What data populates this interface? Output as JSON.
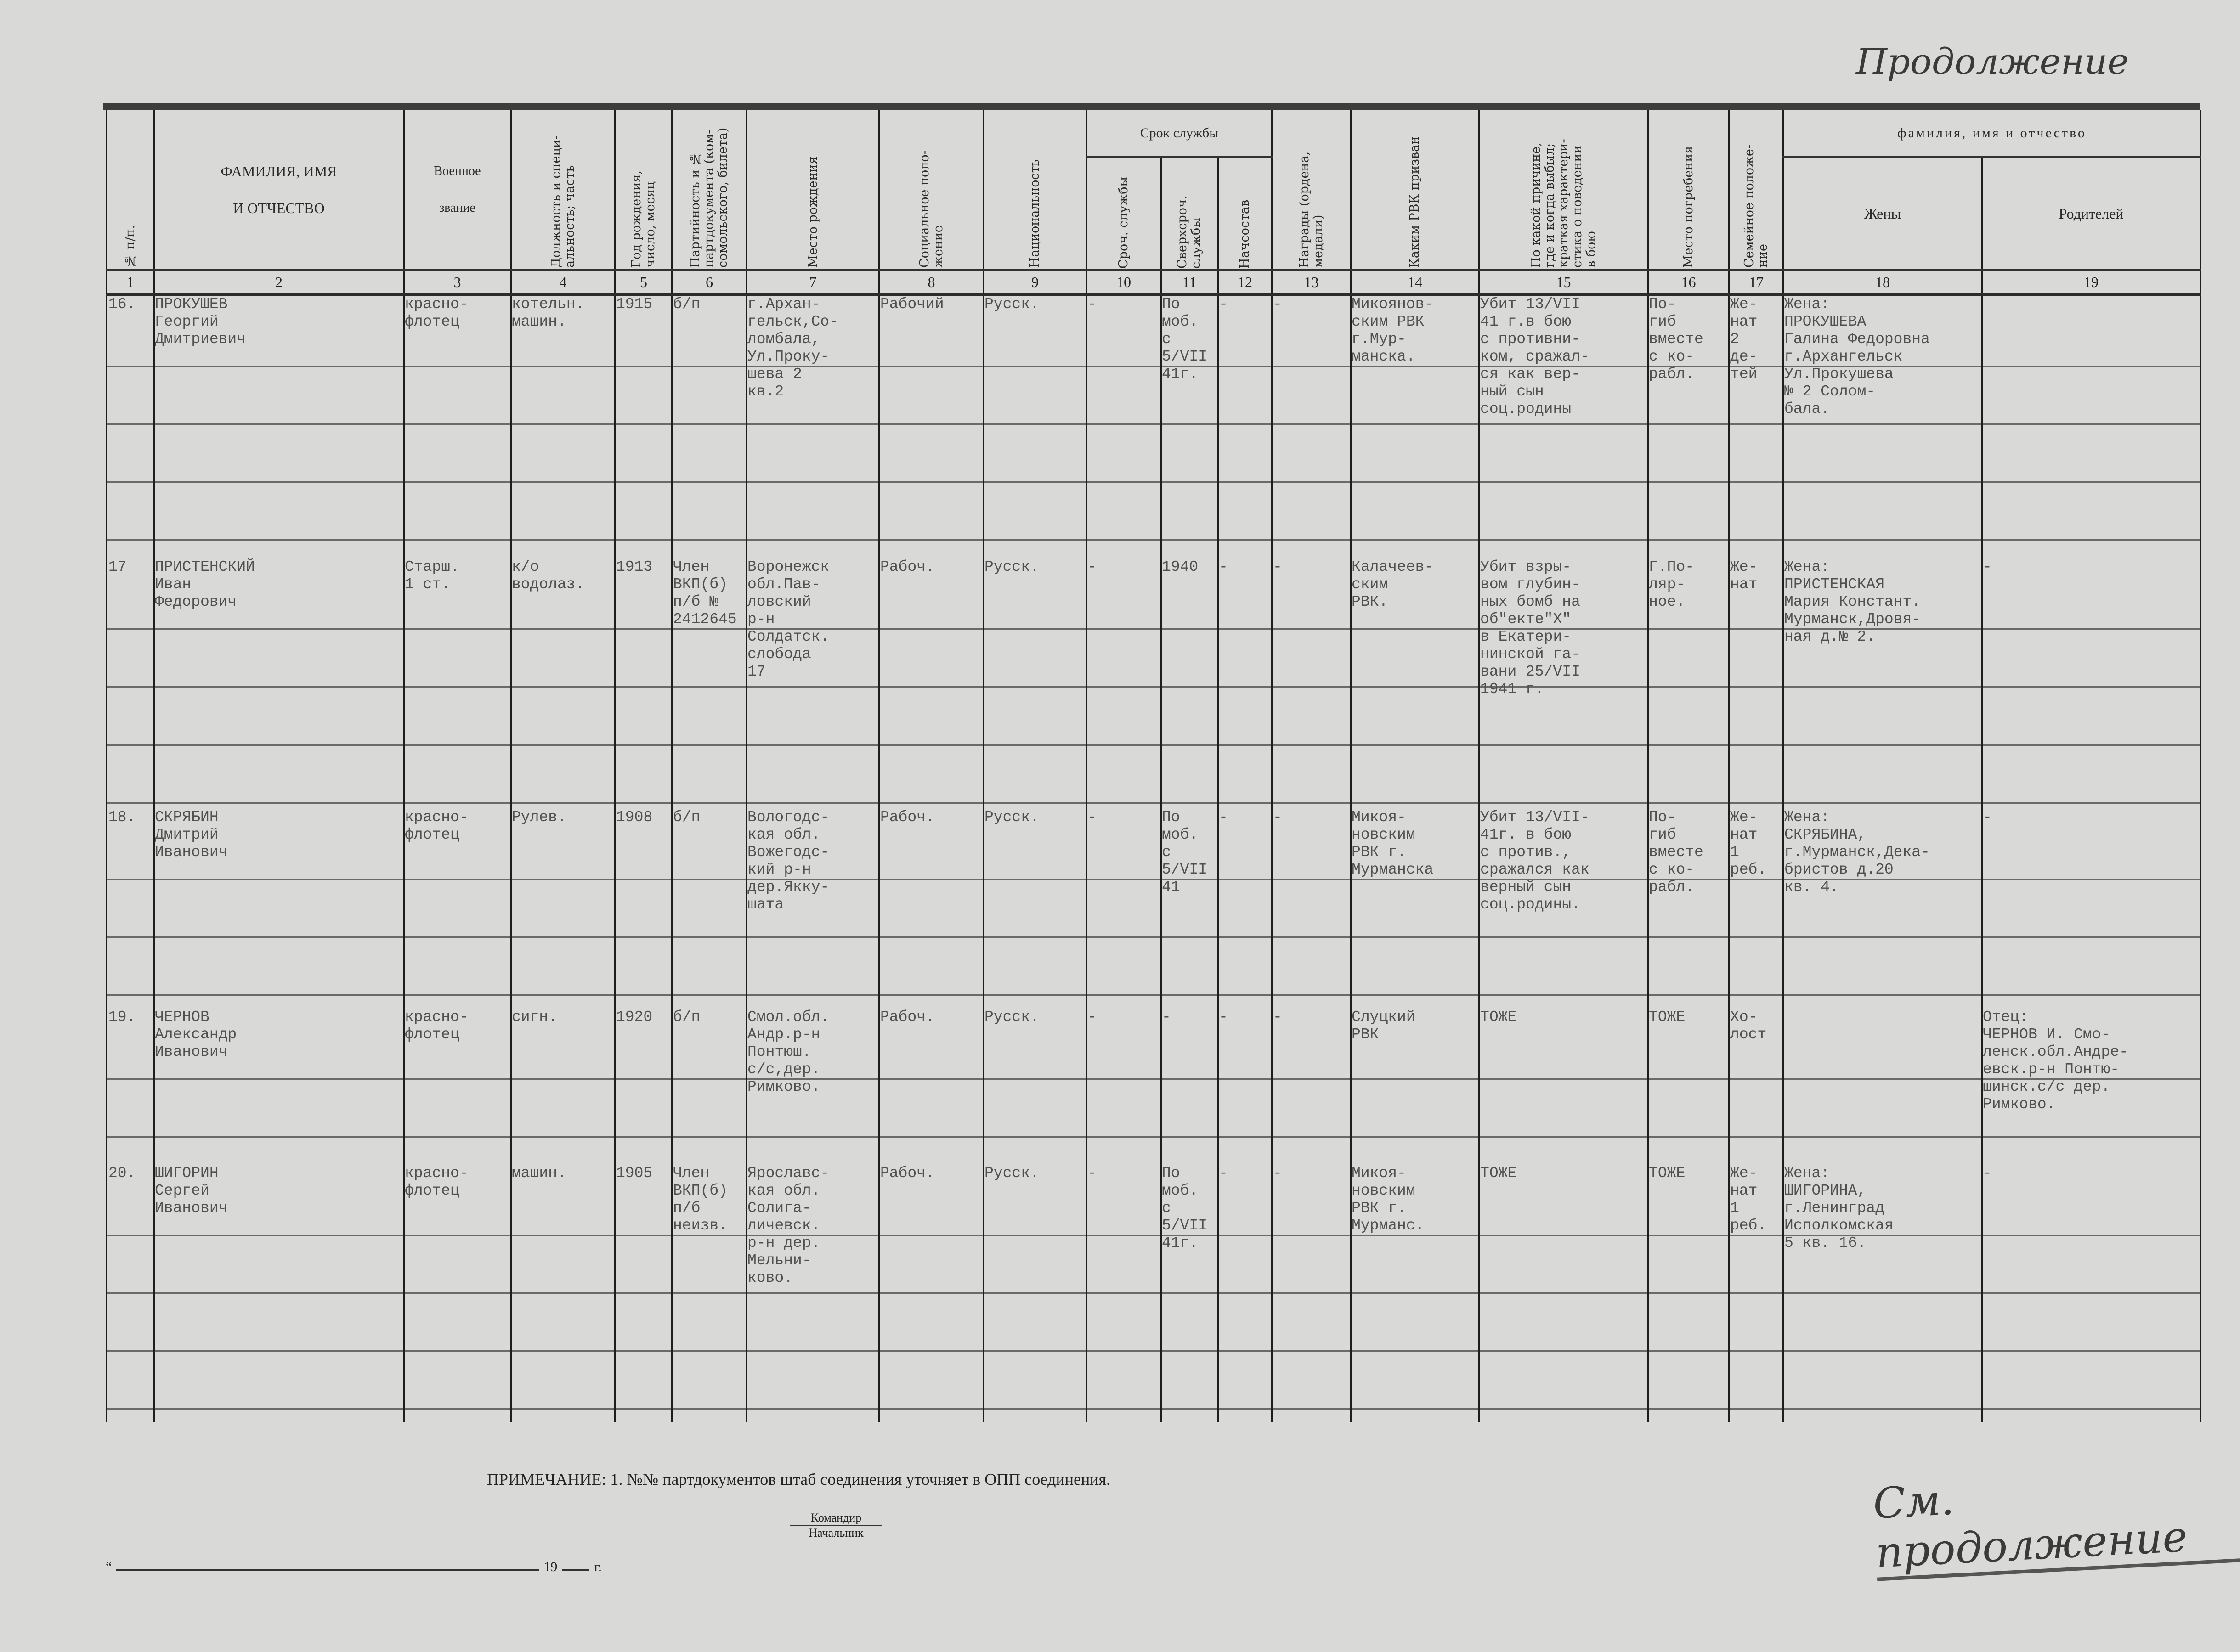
{
  "handwritten": {
    "top": "Продолжение",
    "bottom": "См. продолжение"
  },
  "header": {
    "columns": [
      {
        "n": "1",
        "label": "№ п/п."
      },
      {
        "n": "2",
        "label": "ФАМИЛИЯ, ИМЯ\nИ ОТЧЕСТВО"
      },
      {
        "n": "3",
        "label": "Военное\nзвание"
      },
      {
        "n": "4",
        "label": "Должность и специ-\nальность; часть"
      },
      {
        "n": "5",
        "label": "Год рождения,\nчисло, месяц"
      },
      {
        "n": "6",
        "label": "Партийность и №\nпартдокумента (ком-\nсомольского, билета)"
      },
      {
        "n": "7",
        "label": "Место рождения"
      },
      {
        "n": "8",
        "label": "Социальное поло-\nжение"
      },
      {
        "n": "9",
        "label": "Национальность"
      },
      {
        "n": "10",
        "label": "Сроч. службы"
      },
      {
        "n": "11",
        "label": "Сверхсроч.\nслужбы"
      },
      {
        "n": "12",
        "label": "Начсостав"
      },
      {
        "n": "13",
        "label": "Награды (ордена,\nмедали)"
      },
      {
        "n": "14",
        "label": "Каким РВК призван"
      },
      {
        "n": "15",
        "label": "По какой причине,\nгде и когда выбыл;\nкраткая характери-\nстика о поведении\nв бою"
      },
      {
        "n": "16",
        "label": "Место погребения"
      },
      {
        "n": "17",
        "label": "Семейное положе-\nние"
      },
      {
        "n": "18",
        "label": "Жены"
      },
      {
        "n": "19",
        "label": "Родителей"
      }
    ],
    "group_service": "Срок службы",
    "group_names": "фамилия, имя и отчество"
  },
  "records": [
    [
      "16.",
      "ПРОКУШЕВ\nГеоргий\nДмитриевич",
      "красно-\nфлотец",
      "котельн.\nмашин.",
      "1915",
      "б/п",
      "г.Архан-\nгельск,Со-\nломбала,\nУл.Проку-\nшева 2\nкв.2",
      "Рабочий",
      "Русск.",
      "-",
      "По\nмоб.\nс\n5/VII\n41г.",
      "-",
      "-",
      "Микоянов-\nским РВК\nг.Мур-\nманска.",
      "Убит 13/VII\n41 г.в бою\nс противни-\nком, сражал-\nся как вер-\nный сын\nсоц.родины",
      "По-\nгиб\nвместе\nс ко-\nрабл.",
      "Же-\nнат\n2\nде-\nтей",
      "Жена:\nПРОКУШЕВА\nГалина Федоровна\nг.Архангельск\nУл.Прокушева\n№ 2 Солом-\nбала.",
      ""
    ],
    [
      "17",
      "ПРИСТЕНСКИЙ\nИван\nФедорович",
      "Старш.\n1 ст.",
      "к/о\nводолаз.",
      "1913",
      "Член\nВКП(б)\nп/б №\n2412645",
      "Воронежск\nобл.Пав-\nловский\nр-н\nСолдатск.\nслобода\n17",
      "Рабоч.",
      "Русск.",
      "-",
      "1940",
      "-",
      "-",
      "Калачеев-\nским\nРВК.",
      "Убит взры-\nвом глубин-\nных бомб на\nоб\"екте\"Х\"\nв Екатери-\nнинской га-\nвани 25/VII\n1941 г.",
      "Г.По-\nляр-\nное.",
      "Же-\nнат",
      "Жена:\nПРИСТЕНСКАЯ\nМария Констант.\nМурманск,Дровя-\nная д.№ 2.",
      "-"
    ],
    [
      "18.",
      "СКРЯБИН\nДмитрий\nИванович",
      "красно-\nфлотец",
      "Рулев.",
      "1908",
      "б/п",
      "Вологодс-\nкая обл.\nВожегодс-\nкий р-н\nдер.Якку-\nшата",
      "Рабоч.",
      "Русск.",
      "-",
      "По\nмоб.\nс\n5/VII\n41",
      "-",
      "-",
      "Микоя-\nновским\nРВК г.\nМурманска",
      "Убит 13/VII-\n41г. в бою\nс против.,\nсражался как\nверный сын\nсоц.родины.",
      "По-\nгиб\nвместе\nс ко-\nрабл.",
      "Же-\nнат\n1\nреб.",
      "Жена:\nСКРЯБИНА,\nг.Мурманск,Дека-\nбристов д.20\nкв. 4.",
      "-"
    ],
    [
      "19.",
      "ЧЕРНОВ\nАлександр\nИванович",
      "красно-\nфлотец",
      "сигн.",
      "1920",
      "б/п",
      "Смол.обл.\nАндр.р-н\nПонтюш.\nс/с,дер.\nРимково.",
      "Рабоч.",
      "Русск.",
      "-",
      "-",
      "-",
      "-",
      "Слуцкий\nРВК",
      "ТОЖЕ",
      "ТОЖЕ",
      "Хо-\nлост",
      "",
      "Отец:\nЧЕРНОВ И. Смо-\nленск.обл.Андре-\nевск.р-н Понтю-\nшинск.с/с дер.\nРимково."
    ],
    [
      "20.",
      "ШИГОРИН\nСергей\nИванович",
      "красно-\nфлотец",
      "машин.",
      "1905",
      "Член\nВКП(б)\nп/б\nнеизв.",
      "Ярославс-\nкая обл.\nСолига-\nличевск.\nр-н дер.\nМельни-\nково.",
      "Рабоч.",
      "Русск.",
      "-",
      "По\nмоб.\nс\n5/VII\n41г.",
      "-",
      "-",
      "Микоя-\nновским\nРВК г.\nМурманс.",
      "ТОЖЕ",
      "ТОЖЕ",
      "Же-\nнат\n1\nреб.",
      "Жена:\nШИГОРИНА,\nг.Ленинград\nИсполкомская\n5 кв. 16.",
      "-"
    ]
  ],
  "footer": {
    "note": "ПРИМЕЧАНИЕ: 1. №№ партдокументов штаб соединения уточняет в ОПП соединения.",
    "commander": "Командир",
    "chief": "Начальник",
    "date_quote": "“",
    "date_year": "19",
    "date_suffix": "г."
  }
}
